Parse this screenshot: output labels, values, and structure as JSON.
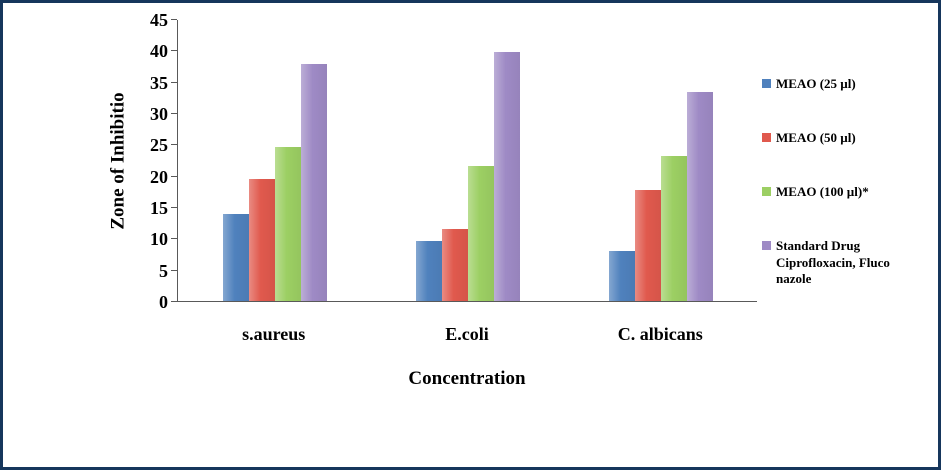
{
  "chart_data": {
    "type": "bar",
    "categories": [
      "s.aureus",
      "E.coli",
      "C. albicans"
    ],
    "series": [
      {
        "name": "MEAO (25 µl)",
        "color": "#4F81BD",
        "values": [
          14.0,
          9.6,
          8.0
        ]
      },
      {
        "name": "MEAO (50 µl)",
        "color": "#E0594D",
        "values": [
          19.6,
          11.5,
          17.8
        ]
      },
      {
        "name": "MEAO (100 µl)*",
        "color": "#9CCF63",
        "values": [
          24.6,
          21.7,
          23.3
        ]
      },
      {
        "name": "Standard Drug Ciprofloxacin, Fluco nazole",
        "color": "#9E8AC5",
        "values": [
          38.0,
          39.8,
          33.5
        ]
      }
    ],
    "title": "",
    "xlabel": "Concentration",
    "ylabel": "Zone of Inhibitio",
    "ylim": [
      0,
      45
    ],
    "ytick_step": 5,
    "grid": false,
    "legend_position": "right",
    "frame_color": "#16365C",
    "axis_color": "#595959"
  }
}
